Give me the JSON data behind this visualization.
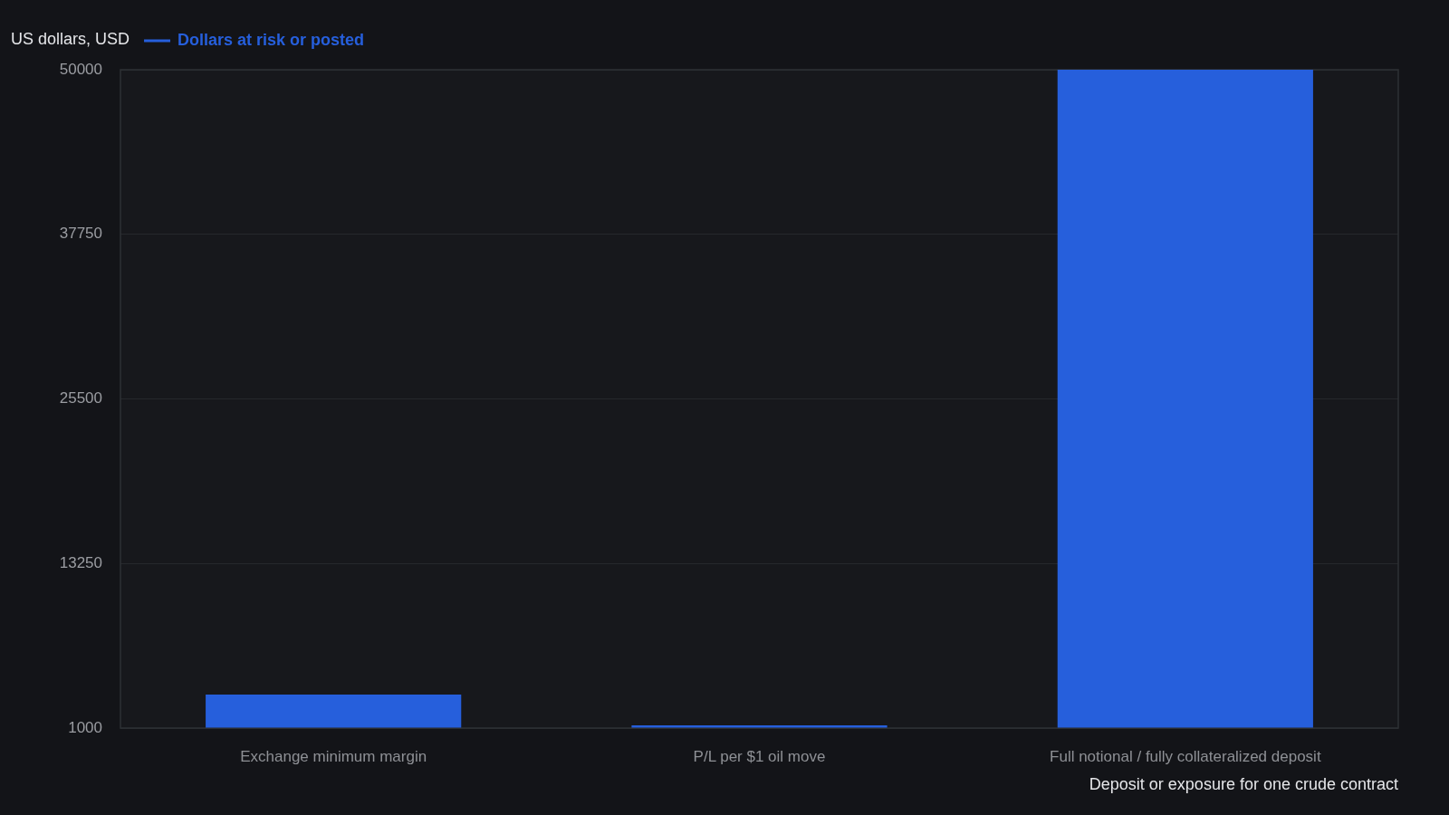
{
  "chart_data": {
    "type": "bar",
    "ylabel": "US dollars, USD",
    "xlabel": "Deposit or exposure for one crude contract",
    "categories": [
      "Exchange minimum margin",
      "P/L per $1 oil move",
      "Full notional / fully collateralized deposit"
    ],
    "series": [
      {
        "name": "Dollars at risk or posted",
        "color": "#265fdc",
        "values": [
          3500,
          1000,
          50000
        ]
      }
    ],
    "ylim": [
      1000,
      50000
    ],
    "yticks": [
      1000,
      13250,
      25500,
      37750,
      50000
    ],
    "grid": "y",
    "legend": "top left"
  }
}
